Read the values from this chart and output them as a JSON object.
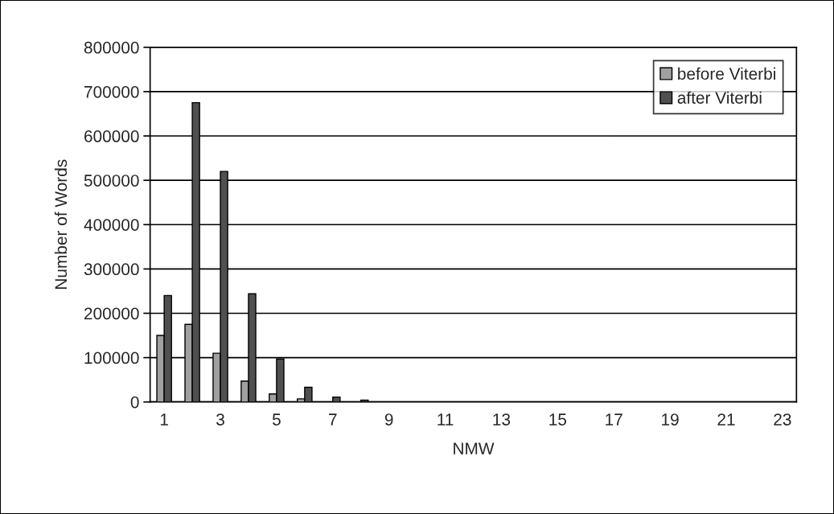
{
  "chart_data": {
    "type": "bar",
    "xlabel": "NMW",
    "ylabel": "Number of Words",
    "categories": [
      "1",
      null,
      "3",
      null,
      "5",
      null,
      "7",
      null,
      "9",
      null,
      "11",
      null,
      "13",
      null,
      "15",
      null,
      "17",
      null,
      "19",
      null,
      "21",
      null,
      "23"
    ],
    "series": [
      {
        "name": "before Viterbi",
        "color": "#a0a0a0",
        "values": [
          150000,
          175000,
          110000,
          47000,
          18000,
          7000,
          0,
          0,
          0,
          0,
          0,
          0,
          0,
          0,
          0,
          0,
          0,
          0,
          0,
          0,
          0,
          0,
          0
        ]
      },
      {
        "name": "after Viterbi",
        "color": "#505050",
        "values": [
          240000,
          675000,
          520000,
          244000,
          97000,
          33000,
          11000,
          4000,
          0,
          0,
          0,
          0,
          0,
          0,
          0,
          0,
          0,
          0,
          0,
          0,
          0,
          0,
          0
        ]
      }
    ],
    "ylim": [
      0,
      800000
    ],
    "yticks": [
      0,
      100000,
      200000,
      300000,
      400000,
      500000,
      600000,
      700000,
      800000
    ],
    "grid": "y",
    "legend": "top right"
  }
}
